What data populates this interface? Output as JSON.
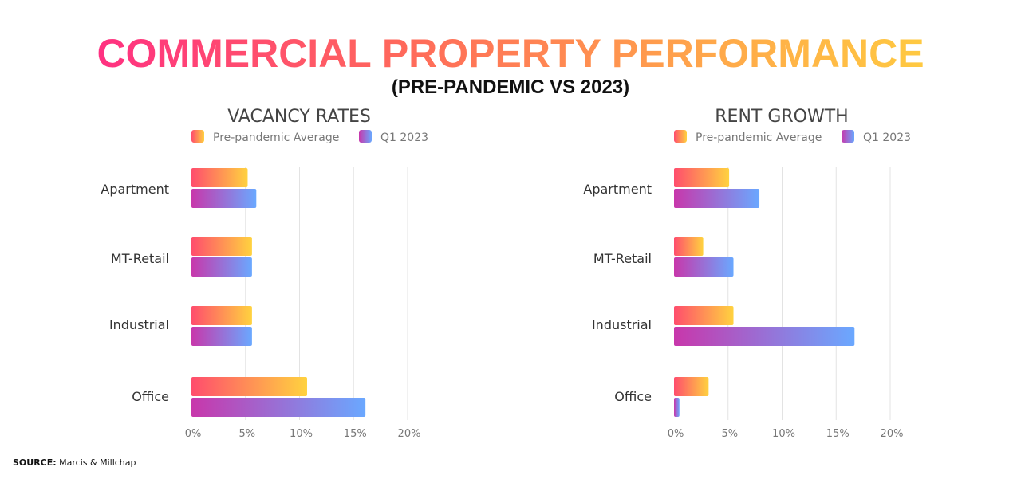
{
  "title": "COMMERCIAL PROPERTY PERFORMANCE",
  "subtitle": "(PRE-PANDEMIC VS 2023)",
  "source": {
    "label": "SOURCE:",
    "text": "Marcis & Millchap"
  },
  "colors": {
    "pre_start": "#ff4d6d",
    "pre_end": "#ffd23f",
    "q1_start": "#c837ab",
    "q1_end": "#6aa8ff"
  },
  "chart_data": [
    {
      "type": "bar",
      "orientation": "horizontal",
      "title": "VACANCY RATES",
      "categories": [
        "Apartment",
        "MT-Retail",
        "Industrial",
        "Office"
      ],
      "series": [
        {
          "name": "Pre-pandemic Average",
          "values": [
            5.2,
            5.6,
            5.6,
            10.7
          ]
        },
        {
          "name": "Q1 2023",
          "values": [
            6.0,
            5.6,
            5.6,
            16.1
          ]
        }
      ],
      "xticks": [
        "0%",
        "5%",
        "10%",
        "15%",
        "20%"
      ],
      "xlim": [
        0,
        20
      ],
      "grid": true,
      "legend": "top"
    },
    {
      "type": "bar",
      "orientation": "horizontal",
      "title": "RENT GROWTH",
      "categories": [
        "Apartment",
        "MT-Retail",
        "Industrial",
        "Office"
      ],
      "series": [
        {
          "name": "Pre-pandemic Average",
          "values": [
            5.1,
            2.7,
            5.5,
            3.2
          ]
        },
        {
          "name": "Q1 2023",
          "values": [
            7.9,
            5.5,
            16.7,
            0.5
          ]
        }
      ],
      "xticks": [
        "0%",
        "5%",
        "10%",
        "15%",
        "20%"
      ],
      "xlim": [
        0,
        20
      ],
      "grid": true,
      "legend": "top"
    }
  ]
}
